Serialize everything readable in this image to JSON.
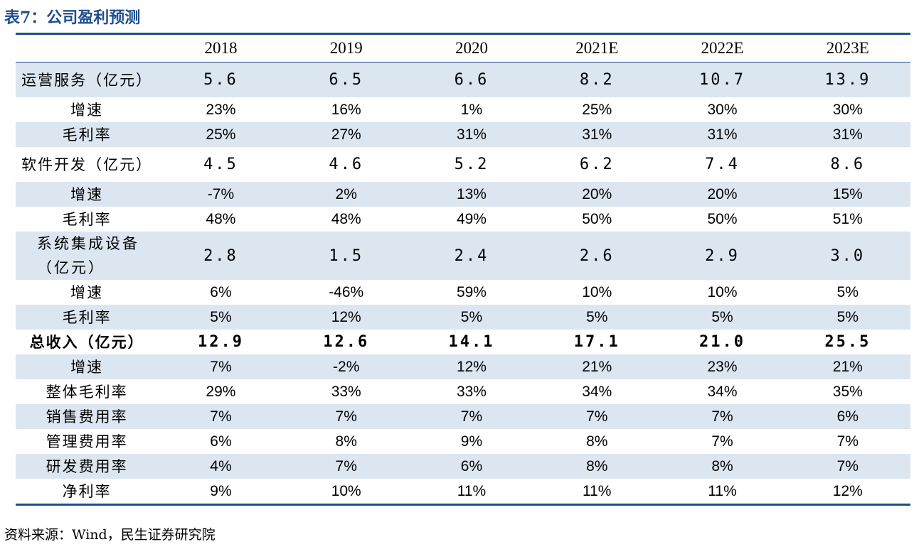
{
  "title": "表7：公司盈利预测",
  "columns": [
    "",
    "2018",
    "2019",
    "2020",
    "2021E",
    "2022E",
    "2023E"
  ],
  "rows": [
    {
      "label": "运营服务（亿元）",
      "values": [
        "5.6",
        "6.5",
        "6.6",
        "8.2",
        "10.7",
        "13.9"
      ]
    },
    {
      "label": "增速",
      "values": [
        "23%",
        "16%",
        "1%",
        "25%",
        "30%",
        "30%"
      ]
    },
    {
      "label": "毛利率",
      "values": [
        "25%",
        "27%",
        "31%",
        "31%",
        "31%",
        "31%"
      ]
    },
    {
      "label": "软件开发（亿元）",
      "values": [
        "4.5",
        "4.6",
        "5.2",
        "6.2",
        "7.4",
        "8.6"
      ]
    },
    {
      "label": "增速",
      "values": [
        "-7%",
        "2%",
        "13%",
        "20%",
        "20%",
        "15%"
      ]
    },
    {
      "label": "毛利率",
      "values": [
        "48%",
        "48%",
        "49%",
        "50%",
        "50%",
        "51%"
      ]
    },
    {
      "label": "系统集成设备（亿元）",
      "values": [
        "2.8",
        "1.5",
        "2.4",
        "2.6",
        "2.9",
        "3.0"
      ]
    },
    {
      "label": "增速",
      "values": [
        "6%",
        "-46%",
        "59%",
        "10%",
        "10%",
        "5%"
      ]
    },
    {
      "label": "毛利率",
      "values": [
        "5%",
        "12%",
        "5%",
        "5%",
        "5%",
        "5%"
      ]
    },
    {
      "label": "总收入（亿元）",
      "values": [
        "12.9",
        "12.6",
        "14.1",
        "17.1",
        "21.0",
        "25.5"
      ]
    },
    {
      "label": "增速",
      "values": [
        "7%",
        "-2%",
        "12%",
        "21%",
        "23%",
        "21%"
      ]
    },
    {
      "label": "整体毛利率",
      "values": [
        "29%",
        "33%",
        "33%",
        "34%",
        "34%",
        "35%"
      ]
    },
    {
      "label": "销售费用率",
      "values": [
        "7%",
        "7%",
        "7%",
        "7%",
        "7%",
        "6%"
      ]
    },
    {
      "label": "管理费用率",
      "values": [
        "6%",
        "8%",
        "9%",
        "8%",
        "7%",
        "7%"
      ]
    },
    {
      "label": "研发费用率",
      "values": [
        "4%",
        "7%",
        "6%",
        "8%",
        "8%",
        "7%"
      ]
    },
    {
      "label": "净利率",
      "values": [
        "9%",
        "10%",
        "11%",
        "11%",
        "11%",
        "12%"
      ]
    }
  ],
  "source": "资料来源：Wind，民生证券研究院",
  "colors": {
    "accent": "#1f4e8c",
    "row_shade": "#dce6f1"
  }
}
